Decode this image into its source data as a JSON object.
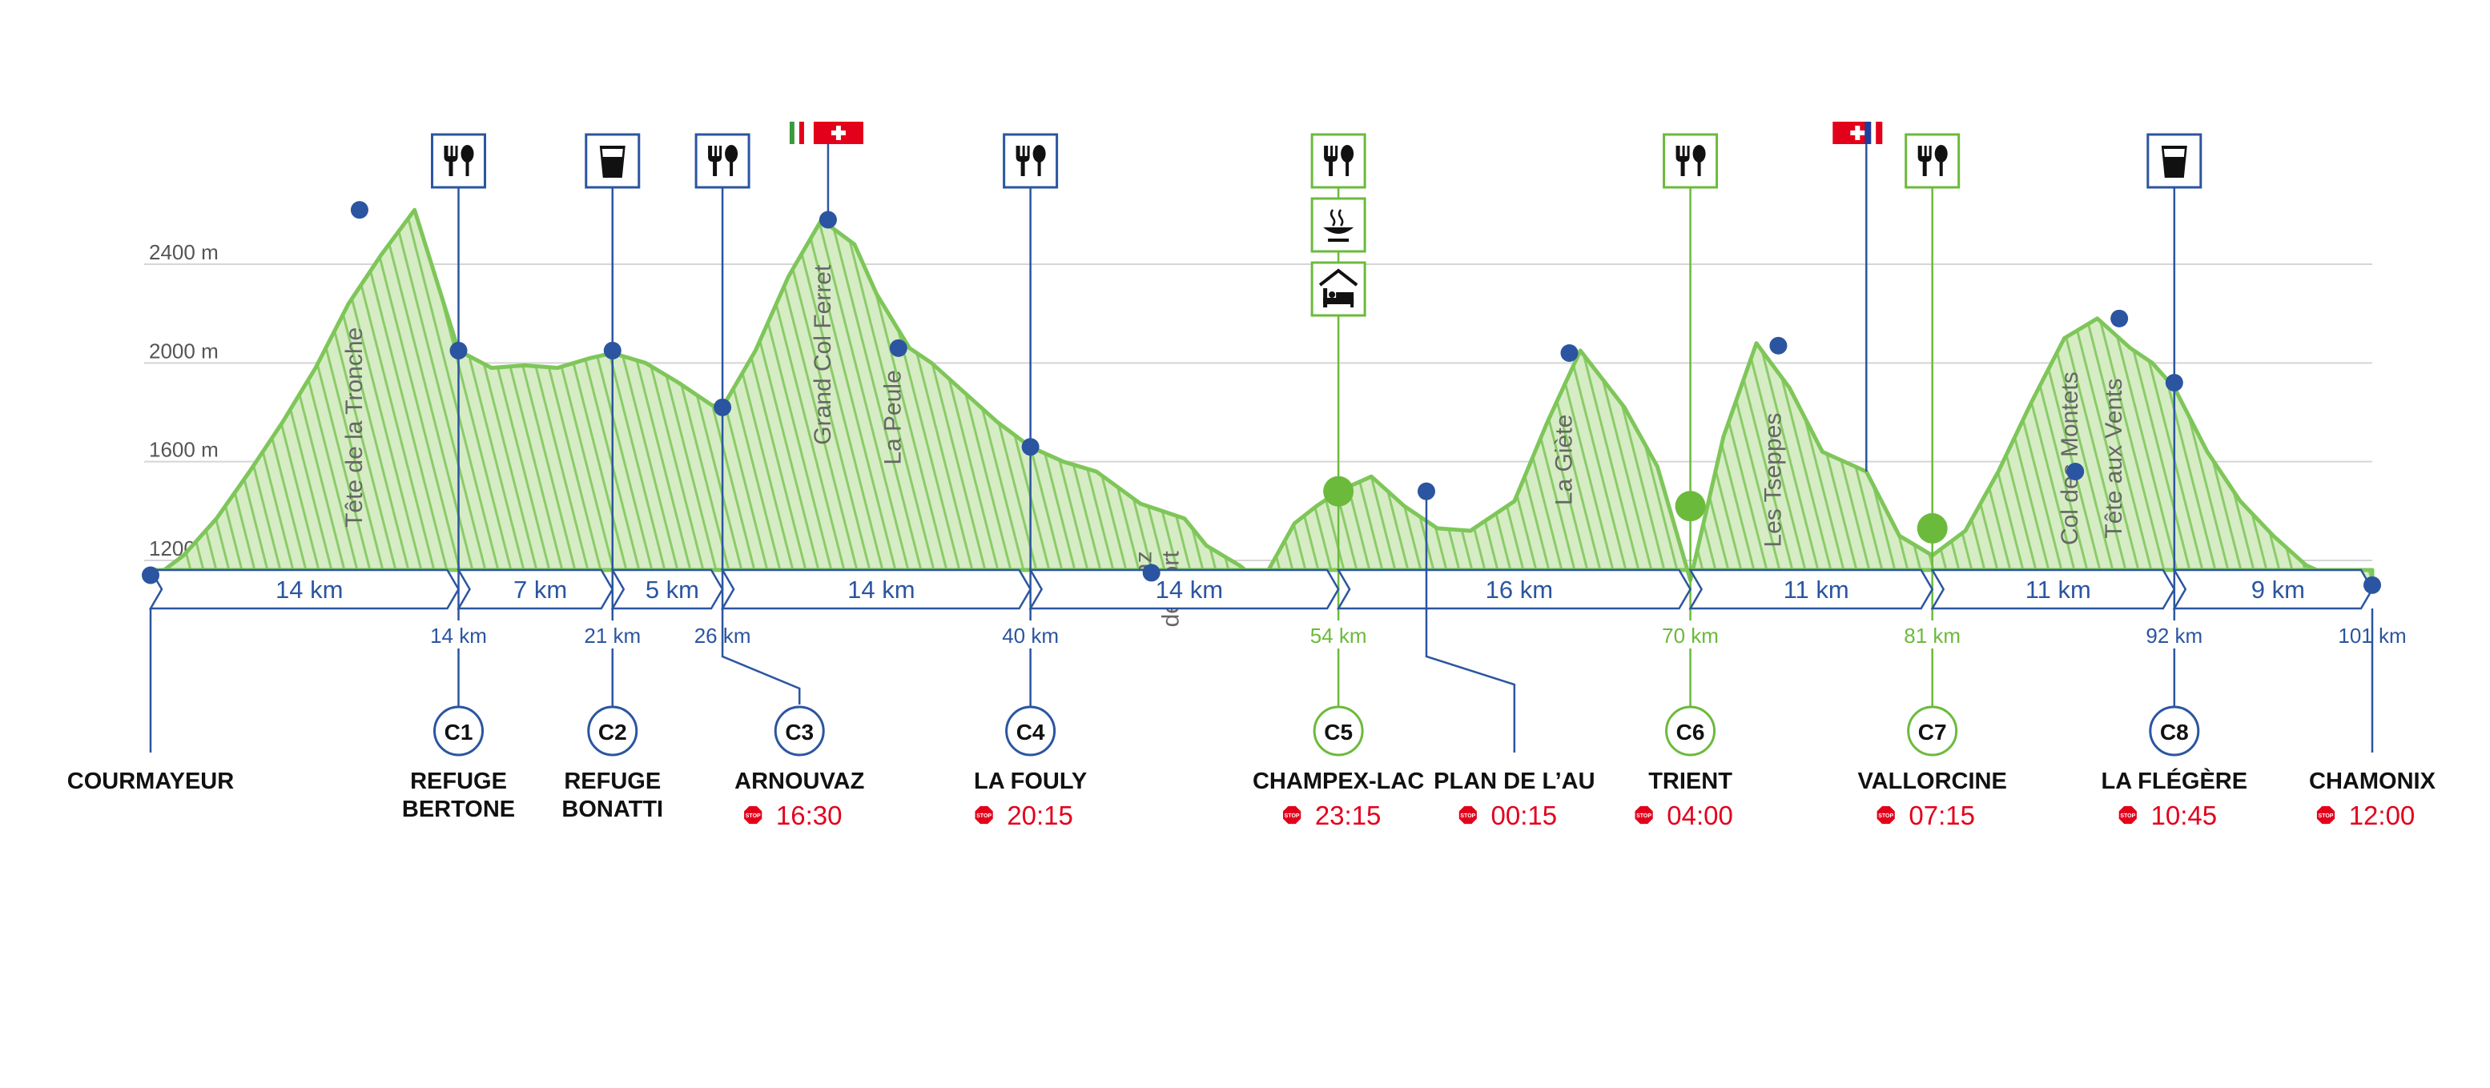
{
  "chart_data": {
    "type": "area",
    "title": "",
    "xlabel": "",
    "ylabel": "",
    "y_unit": "m",
    "y_ticks": [
      {
        "value": 1200,
        "label": "1200 m"
      },
      {
        "value": 1600,
        "label": "1600 m"
      },
      {
        "value": 2000,
        "label": "2000 m"
      },
      {
        "value": 2400,
        "label": "2400 m"
      }
    ],
    "xlim": [
      0,
      101
    ],
    "ylim": [
      1000,
      2700
    ],
    "grid": true,
    "colors": {
      "blue": "#2b55a0",
      "green": "#6cba3c",
      "fill": "#d6ecc4",
      "stroke_green": "#7ec659",
      "cutoff_red": "#e3001b",
      "black": "#111111",
      "grid": "#d5d5d5"
    },
    "profile": {
      "x": [
        0,
        1.5,
        3,
        4.5,
        6,
        7.5,
        9,
        10.5,
        12,
        14,
        15.5,
        17,
        18.5,
        20,
        21,
        22.5,
        24,
        25.5,
        26,
        27.5,
        29,
        30.5,
        32,
        33,
        34.5,
        35.5,
        37,
        38.5,
        40,
        41.5,
        43,
        45,
        47,
        48,
        49.5,
        50.5,
        52,
        53,
        54,
        55.5,
        57,
        58.5,
        60,
        62,
        63.5,
        65,
        67,
        68.5,
        70,
        71.5,
        73,
        74.5,
        76,
        78,
        79.5,
        81,
        82.5,
        84,
        85.5,
        87,
        88.5,
        90,
        91,
        92,
        93.5,
        95,
        96.5,
        98,
        99.5,
        101
      ],
      "y": [
        1120,
        1220,
        1370,
        1560,
        1760,
        1980,
        2240,
        2440,
        2620,
        2050,
        1980,
        1990,
        1980,
        2020,
        2040,
        2000,
        1920,
        1830,
        1820,
        2050,
        2350,
        2580,
        2480,
        2280,
        2060,
        2000,
        1880,
        1760,
        1660,
        1600,
        1560,
        1430,
        1370,
        1260,
        1180,
        1110,
        1350,
        1420,
        1480,
        1540,
        1420,
        1330,
        1320,
        1440,
        1760,
        2050,
        1820,
        1580,
        1120,
        1700,
        2080,
        1900,
        1640,
        1560,
        1300,
        1220,
        1320,
        1560,
        1840,
        2100,
        2180,
        2060,
        2000,
        1900,
        1640,
        1440,
        1300,
        1180,
        1120,
        1100
      ]
    },
    "distance_markers": [
      {
        "x": 14,
        "label": "14 km",
        "color": "blue"
      },
      {
        "x": 21,
        "label": "21 km",
        "color": "blue"
      },
      {
        "x": 26,
        "label": "26 km",
        "color": "blue"
      },
      {
        "x": 40,
        "label": "40 km",
        "color": "blue"
      },
      {
        "x": 54,
        "label": "54 km",
        "color": "green"
      },
      {
        "x": 70,
        "label": "70 km",
        "color": "green"
      },
      {
        "x": 81,
        "label": "81 km",
        "color": "green"
      },
      {
        "x": 92,
        "label": "92 km",
        "color": "blue"
      },
      {
        "x": 101,
        "label": "101 km",
        "color": "blue"
      }
    ],
    "segments": [
      {
        "from": 0,
        "to": 14,
        "label": "14 km"
      },
      {
        "from": 14,
        "to": 21,
        "label": "7 km"
      },
      {
        "from": 21,
        "to": 26,
        "label": "5 km"
      },
      {
        "from": 26,
        "to": 40,
        "label": "14 km"
      },
      {
        "from": 40,
        "to": 54,
        "label": "14 km"
      },
      {
        "from": 54,
        "to": 70,
        "label": "16 km"
      },
      {
        "from": 70,
        "to": 81,
        "label": "11 km"
      },
      {
        "from": 81,
        "to": 92,
        "label": "11 km"
      },
      {
        "from": 92,
        "to": 101,
        "label": "9 km"
      }
    ],
    "peaks": [
      {
        "name": "Tête de la Tronche",
        "x": 9.5
      },
      {
        "name": "Grand Col Ferret",
        "x": 30.8
      },
      {
        "name": "La Peule",
        "x": 34
      },
      {
        "name": "Praz\nde Fort",
        "x": 46
      },
      {
        "name": "La Giète",
        "x": 64.5
      },
      {
        "name": "Les Tseppes",
        "x": 74
      },
      {
        "name": "Col des Montets",
        "x": 87.5
      },
      {
        "name": "Tête aux Vents",
        "x": 89.5
      }
    ],
    "waypoints": [
      {
        "x": 0,
        "y": 1140,
        "big": false
      },
      {
        "x": 9.5,
        "y": 2620,
        "big": false
      },
      {
        "x": 14,
        "y": 2050,
        "big": false
      },
      {
        "x": 21,
        "y": 2050,
        "big": false
      },
      {
        "x": 26,
        "y": 1820,
        "big": false
      },
      {
        "x": 30.8,
        "y": 2580,
        "big": false
      },
      {
        "x": 34,
        "y": 2060,
        "big": false
      },
      {
        "x": 40,
        "y": 1660,
        "big": false
      },
      {
        "x": 45.5,
        "y": 1150,
        "big": false
      },
      {
        "x": 54,
        "y": 1480,
        "big": true
      },
      {
        "x": 58,
        "y": 1480,
        "big": false
      },
      {
        "x": 64.5,
        "y": 2040,
        "big": false
      },
      {
        "x": 70,
        "y": 1420,
        "big": true
      },
      {
        "x": 74,
        "y": 2070,
        "big": false
      },
      {
        "x": 81,
        "y": 1330,
        "big": true
      },
      {
        "x": 87.5,
        "y": 1560,
        "big": false
      },
      {
        "x": 89.5,
        "y": 2180,
        "big": false
      },
      {
        "x": 92,
        "y": 1920,
        "big": false
      },
      {
        "x": 101,
        "y": 1100,
        "big": false
      }
    ],
    "service_icons": [
      {
        "x": 14,
        "icons": [
          "restaurant-icon"
        ],
        "color": "blue"
      },
      {
        "x": 21,
        "icons": [
          "drink-icon"
        ],
        "color": "blue"
      },
      {
        "x": 26,
        "icons": [
          "restaurant-icon"
        ],
        "color": "blue"
      },
      {
        "x": 40,
        "icons": [
          "restaurant-icon"
        ],
        "color": "blue"
      },
      {
        "x": 54,
        "icons": [
          "restaurant-icon",
          "hot-meal-icon",
          "sleep-icon"
        ],
        "color": "green"
      },
      {
        "x": 70,
        "icons": [
          "restaurant-icon"
        ],
        "color": "green"
      },
      {
        "x": 81,
        "icons": [
          "restaurant-icon"
        ],
        "color": "green"
      },
      {
        "x": 92,
        "icons": [
          "drink-icon"
        ],
        "color": "blue"
      }
    ],
    "flags": [
      {
        "x": 30.8,
        "flags": [
          "italy-flag-icon",
          "switzerland-flag-icon"
        ]
      },
      {
        "x": 78,
        "flags": [
          "switzerland-flag-icon",
          "france-flag-icon"
        ]
      }
    ],
    "checkpoints": [
      {
        "label": "C1",
        "x": 14,
        "color": "blue",
        "bend_to": null
      },
      {
        "label": "C2",
        "x": 21,
        "color": "blue",
        "bend_to": null
      },
      {
        "label": "C3",
        "x": 26,
        "color": "blue",
        "bend_to": 29.5
      },
      {
        "label": "C4",
        "x": 40,
        "color": "blue",
        "bend_to": null
      },
      {
        "label": "C5",
        "x": 54,
        "color": "green",
        "bend_to": null
      },
      {
        "label": "C6",
        "x": 70,
        "color": "green",
        "bend_to": null
      },
      {
        "label": "C7",
        "x": 81,
        "color": "green",
        "bend_to": null
      },
      {
        "label": "C8",
        "x": 92,
        "color": "blue",
        "bend_to": null
      }
    ],
    "locations": [
      {
        "lines": [
          "COURMAYEUR"
        ],
        "x": 0,
        "label_x": 0,
        "cutoff": null
      },
      {
        "lines": [
          "REFUGE",
          "BERTONE"
        ],
        "x": 14,
        "label_x": 14,
        "cutoff": null
      },
      {
        "lines": [
          "REFUGE",
          "BONATTI"
        ],
        "x": 21,
        "label_x": 21,
        "cutoff": null
      },
      {
        "lines": [
          "ARNOUVAZ"
        ],
        "x": 29.5,
        "label_x": 29.5,
        "cutoff": "16:30"
      },
      {
        "lines": [
          "LA FOULY"
        ],
        "x": 40,
        "label_x": 40,
        "cutoff": "20:15"
      },
      {
        "lines": [
          "CHAMPEX-LAC"
        ],
        "x": 54,
        "label_x": 54,
        "cutoff": "23:15"
      },
      {
        "lines": [
          "PLAN DE L’AU"
        ],
        "x": 58,
        "label_x": 62,
        "cutoff": "00:15"
      },
      {
        "lines": [
          "TRIENT"
        ],
        "x": 70,
        "label_x": 70,
        "cutoff": "04:00"
      },
      {
        "lines": [
          "VALLORCINE"
        ],
        "x": 81,
        "label_x": 81,
        "cutoff": "07:15"
      },
      {
        "lines": [
          "LA FLÉGÈRE"
        ],
        "x": 92,
        "label_x": 92,
        "cutoff": "10:45"
      },
      {
        "lines": [
          "CHAMONIX"
        ],
        "x": 101,
        "label_x": 101,
        "cutoff": "12:00"
      }
    ],
    "stop_badge_text": "STOP"
  }
}
